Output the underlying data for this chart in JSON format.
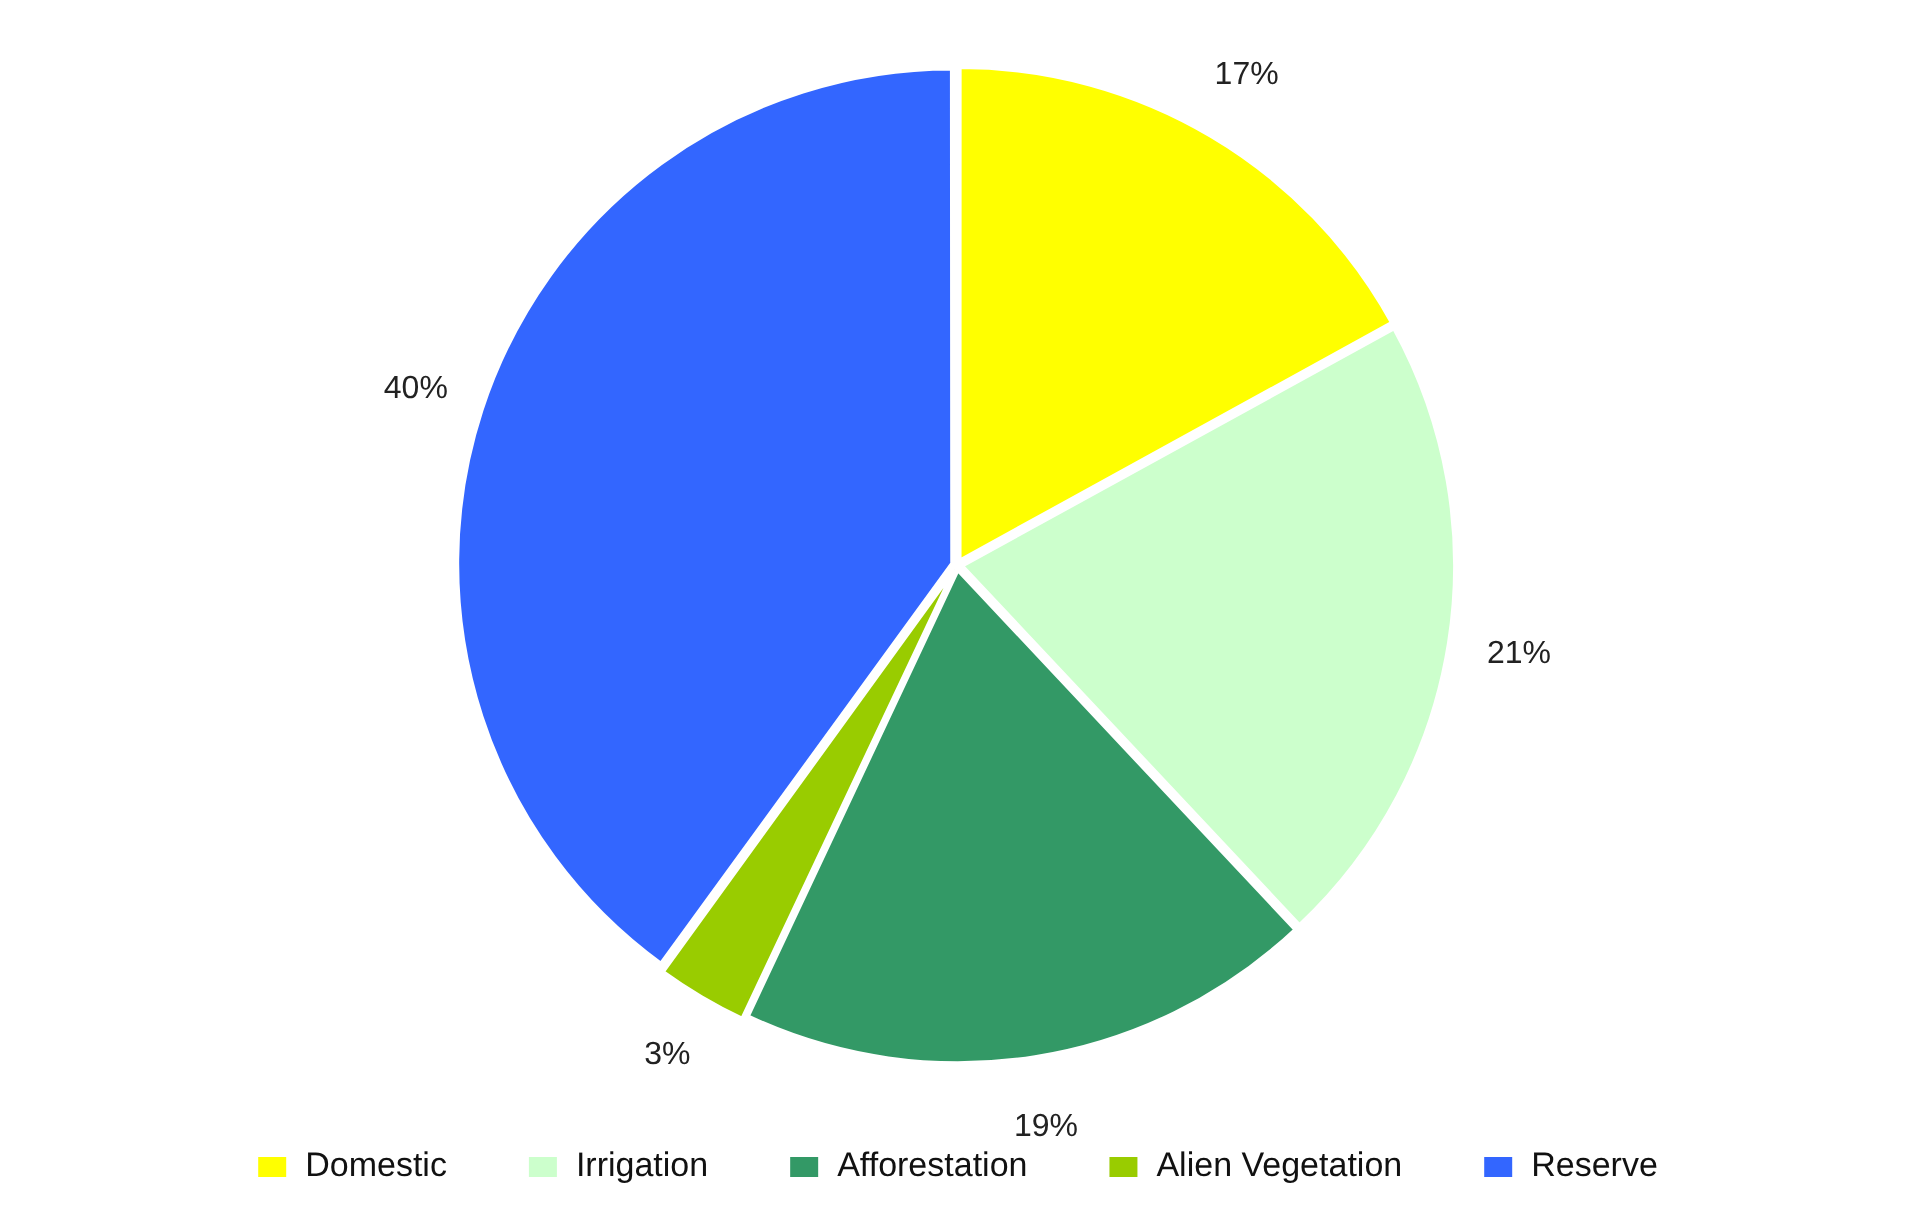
{
  "chart_data": {
    "type": "pie",
    "categories": [
      "Domestic",
      "Irrigation",
      "Afforestation",
      "Alien Vegetation",
      "Reserve"
    ],
    "values": [
      17,
      21,
      19,
      3,
      40
    ],
    "value_labels": [
      "17%",
      "21%",
      "19%",
      "3%",
      "40%"
    ],
    "colors": [
      "#ffff00",
      "#ccffcc",
      "#339966",
      "#99cc00",
      "#3366ff"
    ],
    "legend": "bottom"
  }
}
